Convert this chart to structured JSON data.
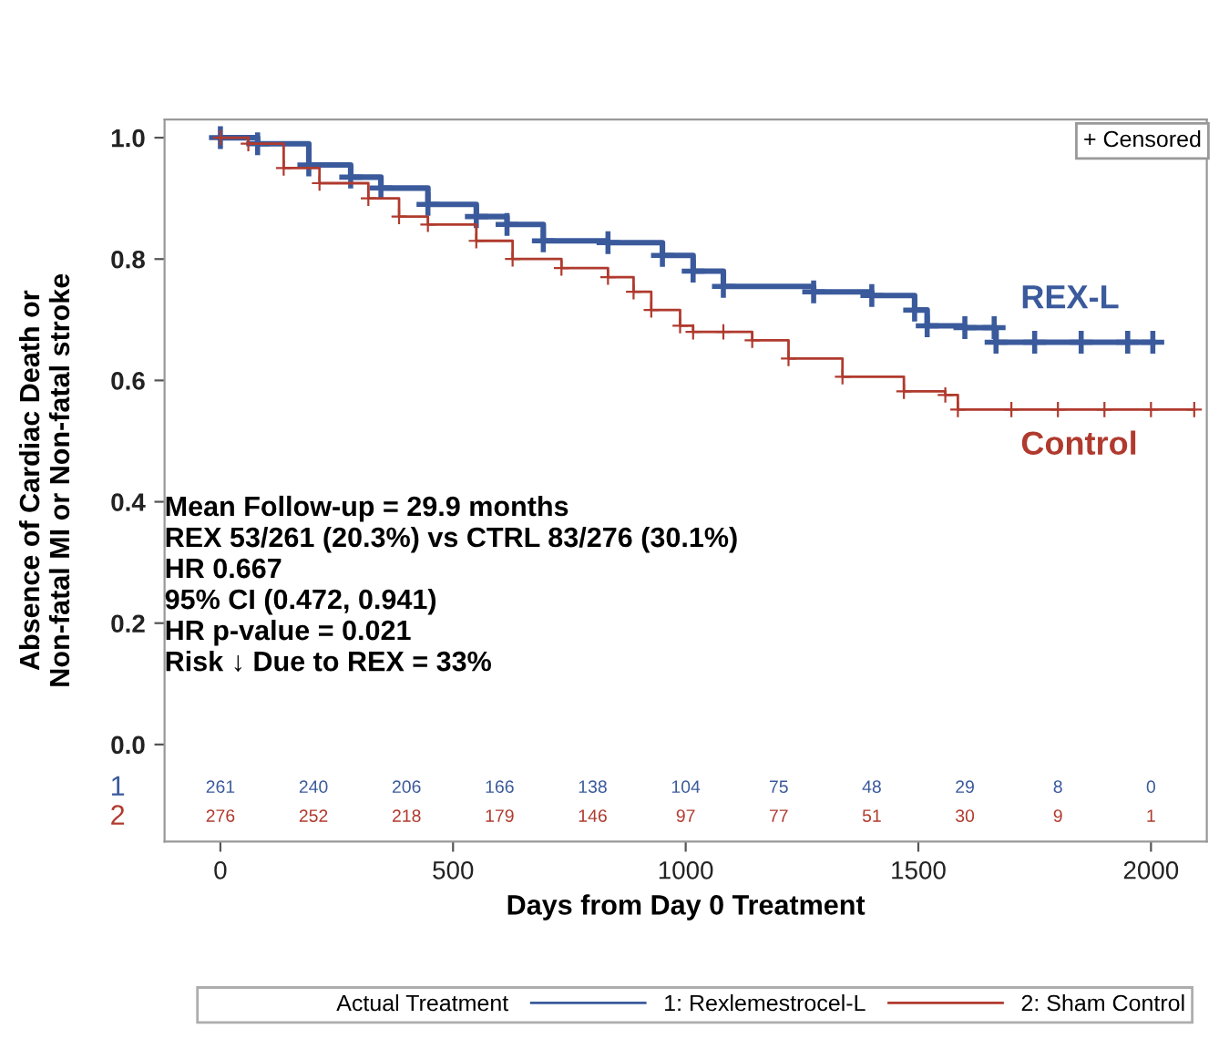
{
  "chart_data": {
    "type": "step",
    "xlabel": "Days from Day 0 Treatment",
    "ylabel": "Absence of Cardiac Death or\nNon-fatal MI or Non-fatal stroke",
    "legend_title": "Actual Treatment",
    "xlim": [
      -120,
      2120
    ],
    "xticks": [
      0,
      500,
      1000,
      1500,
      2000
    ],
    "ylim": [
      -0.16,
      1.03
    ],
    "yticks": [
      {
        "value": 0,
        "label": "0.0"
      },
      0.2,
      0.4,
      0.6,
      0.8,
      {
        "value": 1,
        "label": "1.0"
      }
    ],
    "grid": false,
    "legend": "bottom",
    "marker": "cross",
    "line_style": "solid",
    "series": [
      {
        "name": "1: Rexlemestrocel-L",
        "color": "#3a5a9c",
        "x": [
          0,
          80,
          190,
          280,
          345,
          446,
          550,
          616,
          694,
          833,
          950,
          1016,
          1081,
          1275,
          1400,
          1492,
          1519,
          1600,
          1663,
          1667,
          1750,
          1850,
          1950,
          2004
        ],
        "values": [
          1.0,
          0.99,
          0.955,
          0.935,
          0.917,
          0.89,
          0.87,
          0.857,
          0.83,
          0.827,
          0.806,
          0.78,
          0.755,
          0.746,
          0.74,
          0.716,
          0.69,
          0.687,
          0.687,
          0.663,
          0.663,
          0.663,
          0.663,
          0.663
        ]
      },
      {
        "name": "2: Sham Control",
        "color": "#b03a2e",
        "x": [
          0,
          60,
          136,
          213,
          318,
          384,
          446,
          550,
          628,
          733,
          833,
          888,
          926,
          988,
          1016,
          1081,
          1143,
          1221,
          1337,
          1469,
          1558,
          1585,
          1700,
          1800,
          1900,
          2000,
          2093
        ],
        "values": [
          1.0,
          0.99,
          0.95,
          0.925,
          0.9,
          0.87,
          0.857,
          0.83,
          0.8,
          0.785,
          0.77,
          0.746,
          0.716,
          0.69,
          0.68,
          0.68,
          0.666,
          0.636,
          0.606,
          0.582,
          0.576,
          0.552,
          0.552,
          0.552,
          0.552,
          0.552,
          0.552
        ]
      }
    ],
    "annotations": [
      "+ Censored",
      "Mean Follow-up = 29.9 months\nREX 53/261 (20.3%) vs CTRL 83/276 (30.1%)\nHR 0.667\n95% CI (0.472, 0.941)\nHR p-value = 0.021\nRisk ↓ Due to REX = 33%",
      "REX-L",
      "Control",
      "1",
      "2",
      "261 240 206 166 138 104 75 48 29 8 0",
      "276 252 218 179 146 97 77 51 30 9 1"
    ]
  }
}
